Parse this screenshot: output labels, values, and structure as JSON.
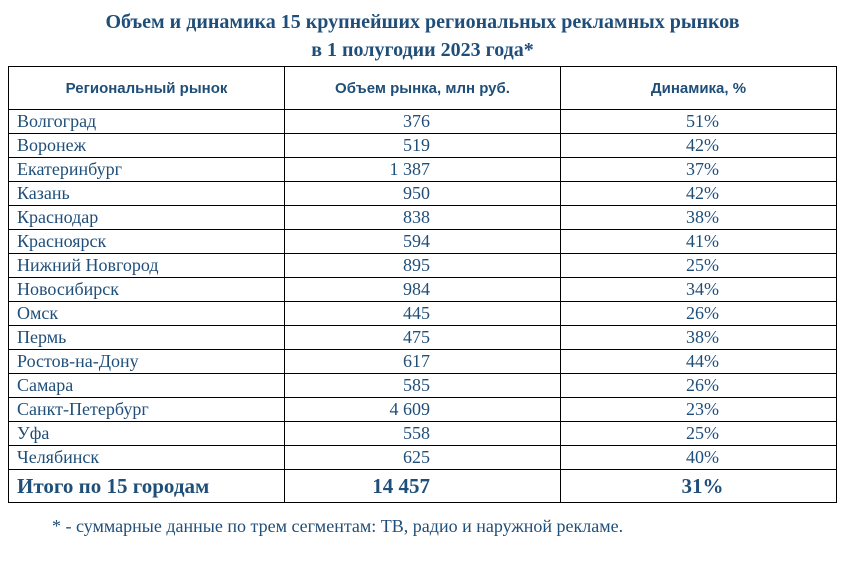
{
  "title": {
    "line1": "Объем и динамика 15 крупнейших региональных рекламных рынков",
    "line2": "в 1 полугодии 2023 года*"
  },
  "table": {
    "headers": [
      "Региональный рынок",
      "Объем рынка, млн руб.",
      "Динамика, %"
    ],
    "rows": [
      [
        "Волгоград",
        "376",
        "51%"
      ],
      [
        "Воронеж",
        "519",
        "42%"
      ],
      [
        "Екатеринбург",
        "1 387",
        "37%"
      ],
      [
        "Казань",
        "950",
        "42%"
      ],
      [
        "Краснодар",
        "838",
        "38%"
      ],
      [
        "Красноярск",
        "594",
        "41%"
      ],
      [
        "Нижний Новгород",
        "895",
        "25%"
      ],
      [
        "Новосибирск",
        "984",
        "34%"
      ],
      [
        "Омск",
        "445",
        "26%"
      ],
      [
        "Пермь",
        "475",
        "38%"
      ],
      [
        "Ростов-на-Дону",
        "617",
        "44%"
      ],
      [
        "Самара",
        "585",
        "26%"
      ],
      [
        "Санкт-Петербург",
        "4 609",
        "23%"
      ],
      [
        "Уфа",
        "558",
        "25%"
      ],
      [
        "Челябинск",
        "625",
        "40%"
      ]
    ],
    "total": [
      "Итого по 15 городам",
      "14 457",
      "31%"
    ]
  },
  "footnote": "* - суммарные данные по трем сегментам: ТВ, радио и наружной рекламе."
}
